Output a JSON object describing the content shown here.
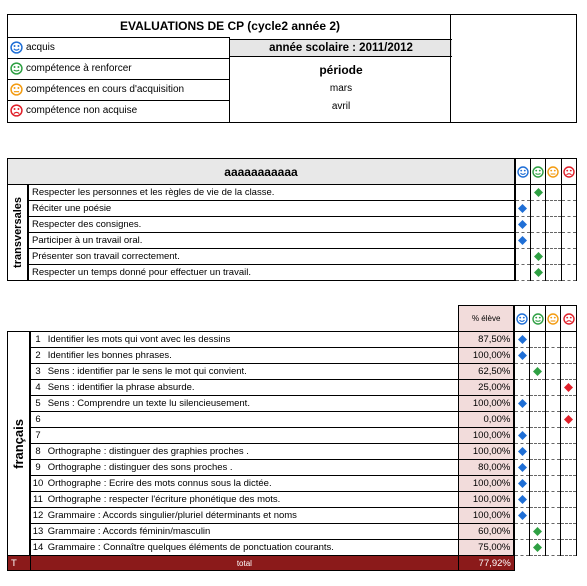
{
  "header": {
    "title": "EVALUATIONS DE CP (cycle2 année 2)",
    "school_year": "année scolaire :  2011/2012",
    "period_label": "période",
    "periods": [
      "mars",
      "avril"
    ]
  },
  "legend": [
    {
      "icon": "blue-face-icon",
      "color": "#1f6fd6",
      "label": "acquis"
    },
    {
      "icon": "green-face-icon",
      "color": "#2ea043",
      "label": "compétence à renforcer"
    },
    {
      "icon": "orange-face-icon",
      "color": "#f39c12",
      "label": "compétences en cours d'acquisition"
    },
    {
      "icon": "red-face-icon",
      "color": "#e0202a",
      "label": "compétence non acquise"
    }
  ],
  "colors": {
    "blue": "#1f6fd6",
    "green": "#2ea043",
    "orange": "#f39c12",
    "red": "#e0202a",
    "pct_bg": "#f2dcdb",
    "total_bg": "#8b1a1a"
  },
  "transversal": {
    "title": "aaaaaaaaaaa",
    "section_label": "transversales",
    "rows": [
      {
        "label": "Respecter les personnes et les règles de vie de la classe.",
        "mark": "green"
      },
      {
        "label": "Réciter une poésie",
        "mark": "blue"
      },
      {
        "label": "Respecter des consignes.",
        "mark": "blue"
      },
      {
        "label": "Participer à un travail oral.",
        "mark": "blue"
      },
      {
        "label": "Présenter son travail correctement.",
        "mark": "green"
      },
      {
        "label": "Respecter un temps donné pour effectuer un travail.",
        "mark": "green"
      }
    ]
  },
  "francais": {
    "section_label": "français",
    "pct_header": "% élève",
    "rows": [
      {
        "num": "1",
        "label": "Identifier  les mots qui vont avec les dessins",
        "pct": "87,50%",
        "mark": "blue"
      },
      {
        "num": "2",
        "label": "Identifier les bonnes phrases.",
        "pct": "100,00%",
        "mark": "blue"
      },
      {
        "num": "3",
        "label": "Sens : identifier par le sens le mot qui convient.",
        "pct": "62,50%",
        "mark": "green"
      },
      {
        "num": "4",
        "label": "Sens : identifier la phrase absurde.",
        "pct": "25,00%",
        "mark": "red"
      },
      {
        "num": "5",
        "label": "Sens : Comprendre un texte lu silencieusement.",
        "pct": "100,00%",
        "mark": "blue"
      },
      {
        "num": "6",
        "label": "",
        "pct": "0,00%",
        "mark": "red"
      },
      {
        "num": "7",
        "label": "",
        "pct": "100,00%",
        "mark": "blue"
      },
      {
        "num": "8",
        "label": "Orthographe : distinguer des graphies proches .",
        "pct": "100,00%",
        "mark": "blue"
      },
      {
        "num": "9",
        "label": "Orthographe : distinguer des sons proches .",
        "pct": "80,00%",
        "mark": "blue"
      },
      {
        "num": "10",
        "label": "Orthographe : Ecrire des mots connus sous la dictée.",
        "pct": "100,00%",
        "mark": "blue"
      },
      {
        "num": "11",
        "label": "Orthographe : respecter l'écriture phonétique des mots.",
        "pct": "100,00%",
        "mark": "blue"
      },
      {
        "num": "12",
        "label": "Grammaire : Accords singulier/pluriel déterminants et noms",
        "pct": "100,00%",
        "mark": "blue"
      },
      {
        "num": "13",
        "label": "Grammaire : Accords féminin/masculin",
        "pct": "60,00%",
        "mark": "green"
      },
      {
        "num": "14",
        "label": "Grammaire : Connaître quelques éléments de ponctuation courants.",
        "pct": "75,00%",
        "mark": "green"
      }
    ],
    "total_letter": "T",
    "total_label": "total",
    "total_pct": "77,92%"
  }
}
